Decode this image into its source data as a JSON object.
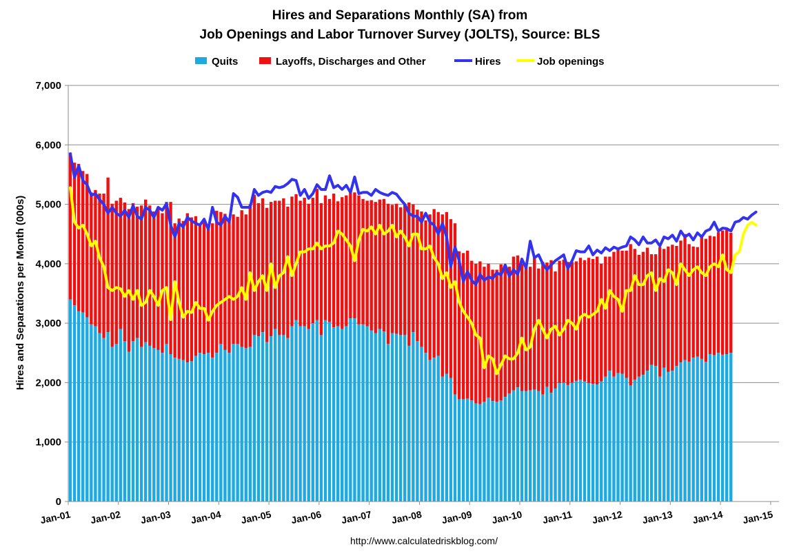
{
  "chart_data": {
    "type": "bar",
    "title_line1": "Hires and Separations Monthly (SA) from",
    "title_line2": "Job Openings and Labor Turnover Survey (JOLTS), Source: BLS",
    "ylabel": "Hires and Separations per Month (000s)",
    "xlabel": "",
    "source_url": "http://www.calculatedriskblog.com/",
    "ylim": [
      0,
      7000
    ],
    "yticks": [
      0,
      1000,
      2000,
      3000,
      4000,
      5000,
      6000,
      7000
    ],
    "ytick_labels": [
      "0",
      "1,000",
      "2,000",
      "3,000",
      "4,000",
      "5,000",
      "6,000",
      "7,000"
    ],
    "xlim_months": [
      0,
      170
    ],
    "xtick_labels": [
      "Jan-01",
      "Jan-02",
      "Jan-03",
      "Jan-04",
      "Jan-05",
      "Jan-06",
      "Jan-07",
      "Jan-08",
      "Jan-09",
      "Jan-10",
      "Jan-11",
      "Jan-12",
      "Jan-13",
      "Jan-14",
      "Jan-15"
    ],
    "grid": "horizontal",
    "legend_position": "top",
    "legend": [
      {
        "label": "Quits",
        "color": "#1fa9e1",
        "kind": "bar"
      },
      {
        "label": "Layoffs, Discharges and Other",
        "color": "#ee1111",
        "kind": "bar"
      },
      {
        "label": "Hires",
        "color": "#3333ee",
        "kind": "line"
      },
      {
        "label": "Job openings",
        "color": "#ffff00",
        "kind": "line"
      }
    ],
    "first_month": "Jan-01",
    "series": [
      {
        "name": "Quits",
        "stacked": true,
        "color": "#1fa9e1",
        "values": [
          3400,
          3300,
          3200,
          3180,
          3100,
          2980,
          2950,
          2830,
          2750,
          2850,
          2600,
          2650,
          2900,
          2700,
          2520,
          2700,
          2750,
          2600,
          2680,
          2620,
          2580,
          2550,
          2500,
          2650,
          2480,
          2420,
          2400,
          2380,
          2340,
          2360,
          2450,
          2500,
          2480,
          2500,
          2420,
          2500,
          2650,
          2550,
          2500,
          2650,
          2650,
          2600,
          2580,
          2600,
          2800,
          2780,
          2850,
          2680,
          2780,
          2900,
          2800,
          2800,
          2750,
          2950,
          3050,
          2950,
          2950,
          2900,
          3000,
          3050,
          2800,
          3050,
          3020,
          2930,
          2950,
          2900,
          2950,
          3080,
          3080,
          2980,
          2980,
          2950,
          2880,
          2830,
          2900,
          2860,
          2650,
          2830,
          2820,
          2800,
          2800,
          2620,
          2850,
          2700,
          2600,
          2500,
          2380,
          2420,
          2450,
          2100,
          2150,
          2080,
          1800,
          1720,
          1720,
          1730,
          1700,
          1650,
          1640,
          1680,
          1750,
          1690,
          1680,
          1700,
          1760,
          1820,
          1870,
          1920,
          1860,
          1860,
          1870,
          1880,
          1860,
          1800,
          1930,
          1830,
          1900,
          1990,
          2000,
          1960,
          2000,
          2030,
          2050,
          2020,
          1990,
          1980,
          1970,
          2020,
          2100,
          2200,
          2100,
          2160,
          2150,
          2080,
          1950,
          2050,
          2100,
          2130,
          2200,
          2300,
          2280,
          2100,
          2250,
          2180,
          2200,
          2280,
          2340,
          2380,
          2350,
          2420,
          2440,
          2400,
          2350,
          2480,
          2460,
          2500,
          2470,
          2480,
          2500
        ],
        "top_values": [
          5870,
          5700,
          5680,
          5560,
          5510,
          5200,
          5240,
          5180,
          5180,
          5450,
          5010,
          5060,
          5110,
          5030,
          4920,
          5020,
          4960,
          4980,
          5080,
          4980,
          4880,
          4950,
          4850,
          5040,
          5040,
          4680,
          4760,
          4720,
          4850,
          4780,
          4800,
          4660,
          4740,
          4650,
          4680,
          4890,
          4870,
          4840,
          4740,
          4830,
          4790,
          4900,
          4830,
          5000,
          5160,
          5020,
          5100,
          4940,
          5040,
          5060,
          5060,
          5100,
          4960,
          5130,
          5170,
          5060,
          5110,
          5010,
          5110,
          5260,
          5020,
          5150,
          5090,
          5180,
          5050,
          5120,
          5150,
          5230,
          5200,
          5150,
          5090,
          5060,
          5070,
          5040,
          5080,
          5090,
          5010,
          4990,
          5010,
          4950,
          4990,
          5030,
          5000,
          4910,
          4880,
          4730,
          4830,
          4920,
          4870,
          4830,
          4870,
          4750,
          4680,
          4210,
          4180,
          4220,
          4050,
          4000,
          4040,
          3950,
          4000,
          3900,
          3900,
          3990,
          3960,
          3950,
          4120,
          4140,
          4000,
          3940,
          3950,
          4100,
          3920,
          4030,
          4020,
          4060,
          3870,
          4050,
          4070,
          4030,
          4030,
          4040,
          4100,
          4060,
          4100,
          4080,
          4120,
          4000,
          4120,
          4120,
          4200,
          4250,
          4220,
          4220,
          4330,
          4250,
          4150,
          4200,
          4270,
          4160,
          4160,
          4280,
          4250,
          4290,
          4320,
          4300,
          4390,
          4500,
          4330,
          4290,
          4280,
          4490,
          4420,
          4470,
          4460,
          4530,
          4560,
          4580,
          4520,
          4560
        ]
      },
      {
        "name": "Hires",
        "color": "#3333ee",
        "values": [
          5850,
          5450,
          5650,
          5400,
          5330,
          5150,
          5180,
          5080,
          5000,
          4850,
          4950,
          4850,
          4800,
          4900,
          4780,
          4980,
          4800,
          4750,
          4950,
          4900,
          4780,
          4950,
          4900,
          5010,
          4650,
          4450,
          4680,
          4620,
          4780,
          4720,
          4680,
          4650,
          4750,
          4580,
          4950,
          4700,
          4650,
          4800,
          4700,
          5180,
          5120,
          4950,
          4950,
          4950,
          5250,
          5150,
          5200,
          5220,
          5200,
          5300,
          5280,
          5300,
          5350,
          5420,
          5400,
          5150,
          5250,
          5100,
          5180,
          5330,
          5250,
          5250,
          5480,
          5280,
          5320,
          5250,
          5320,
          5200,
          5460,
          5180,
          5200,
          5200,
          5150,
          5250,
          5200,
          5170,
          5150,
          5200,
          5170,
          5080,
          5000,
          4850,
          4800,
          4800,
          4700,
          4850,
          4700,
          4650,
          4500,
          4680,
          4450,
          3950,
          4280,
          4050,
          3700,
          3870,
          3720,
          3650,
          3820,
          3720,
          3780,
          3750,
          3850,
          3810,
          3980,
          3790,
          3900,
          3820,
          4080,
          3930,
          4380,
          4100,
          4150,
          4000,
          3900,
          3980,
          4050,
          4100,
          4150,
          3920,
          4050,
          4220,
          4200,
          4200,
          4300,
          4150,
          4230,
          4180,
          4270,
          4220,
          4280,
          4250,
          4280,
          4300,
          4450,
          4400,
          4320,
          4450,
          4350,
          4350,
          4400,
          4300,
          4450,
          4420,
          4480,
          4380,
          4550,
          4450,
          4500,
          4400,
          4520,
          4450,
          4550,
          4580,
          4700,
          4550,
          4600,
          4590,
          4550,
          4700,
          4720,
          4780,
          4750,
          4820,
          4870
        ]
      },
      {
        "name": "Job openings",
        "color": "#ffff00",
        "values": [
          5280,
          4700,
          4600,
          4650,
          4500,
          4300,
          4380,
          4100,
          3950,
          3600,
          3550,
          3600,
          3580,
          3450,
          3550,
          3400,
          3550,
          3300,
          3350,
          3550,
          3450,
          3300,
          3550,
          3600,
          3060,
          3700,
          3350,
          3100,
          3200,
          3180,
          3350,
          3250,
          3250,
          3050,
          3200,
          3300,
          3350,
          3400,
          3450,
          3400,
          3450,
          3600,
          3400,
          3850,
          3550,
          3700,
          3800,
          3550,
          4000,
          3600,
          3800,
          3850,
          4120,
          3800,
          4000,
          4200,
          4200,
          4250,
          4250,
          4350,
          4250,
          4300,
          4300,
          4350,
          4550,
          4500,
          4400,
          4300,
          4050,
          4400,
          4580,
          4550,
          4620,
          4500,
          4650,
          4500,
          4550,
          4650,
          4450,
          4550,
          4450,
          4300,
          4500,
          4500,
          4250,
          4250,
          4300,
          4100,
          4000,
          3750,
          3850,
          3600,
          3700,
          3350,
          3200,
          3100,
          3000,
          2800,
          2750,
          2250,
          2450,
          2400,
          2150,
          2300,
          2450,
          2400,
          2400,
          2500,
          2750,
          2550,
          2600,
          2900,
          3050,
          2900,
          2750,
          2900,
          2950,
          2800,
          2900,
          3050,
          3000,
          2900,
          3100,
          3150,
          3100,
          3150,
          3200,
          3400,
          3250,
          3550,
          3450,
          3400,
          3200,
          3550,
          3550,
          3800,
          3650,
          3650,
          3800,
          3850,
          3550,
          3750,
          3700,
          3900,
          3850,
          3650,
          4000,
          3900,
          3800,
          3900,
          3950,
          3850,
          3800,
          3950,
          4000,
          3950,
          4150,
          3900,
          3850,
          4150,
          4200,
          4500,
          4650,
          4700,
          4650
        ]
      }
    ]
  }
}
